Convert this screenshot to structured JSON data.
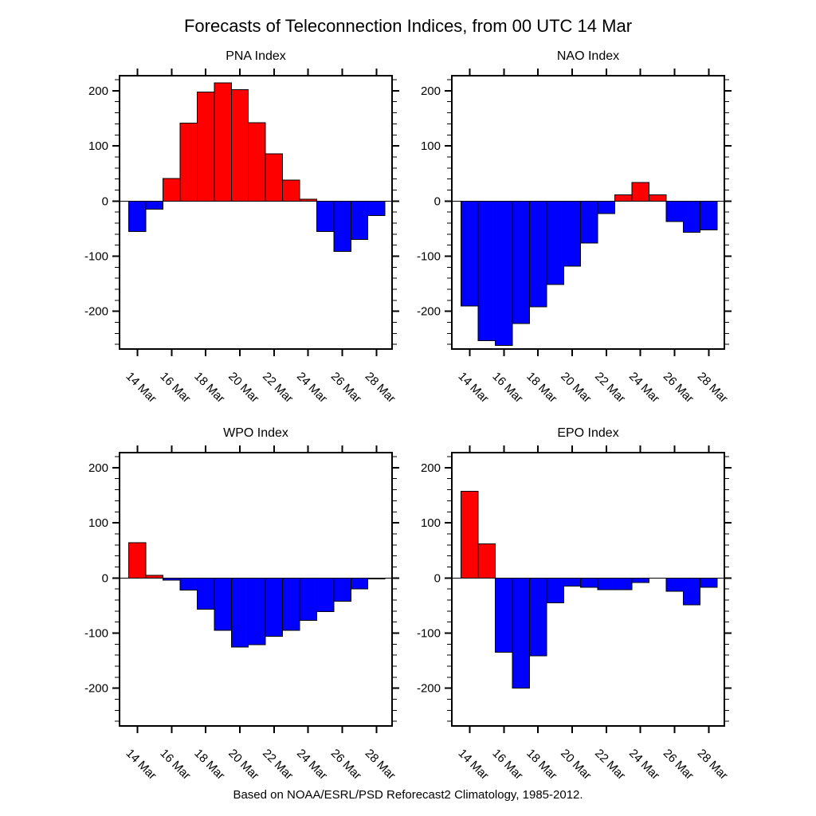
{
  "page": {
    "title": "Forecasts of Teleconnection Indices, from 00 UTC 14 Mar",
    "caption": "Based on NOAA/ESRL/PSD Reforecast2 Climatology, 1985-2012."
  },
  "colors": {
    "positive_bar": "#ff0000",
    "negative_bar": "#0000ff",
    "axis": "#000000",
    "background": "#ffffff"
  },
  "chart_data": [
    {
      "type": "bar",
      "title": "PNA Index",
      "categories": [
        "14 Mar",
        "15 Mar",
        "16 Mar",
        "17 Mar",
        "18 Mar",
        "19 Mar",
        "20 Mar",
        "21 Mar",
        "22 Mar",
        "23 Mar",
        "24 Mar",
        "25 Mar",
        "26 Mar",
        "27 Mar",
        "28 Mar"
      ],
      "values": [
        -55,
        -15,
        41,
        141,
        198,
        214,
        202,
        142,
        86,
        38,
        3,
        -55,
        -91,
        -70,
        -26
      ],
      "xlabel": "",
      "ylabel": "",
      "ylim": [
        -270,
        227
      ],
      "y_major_ticks": [
        200,
        100,
        0,
        -100,
        -200
      ],
      "y_minor_interval": 20,
      "x_tick_labels": [
        "14 Mar",
        "16 Mar",
        "18 Mar",
        "20 Mar",
        "22 Mar",
        "24 Mar",
        "26 Mar",
        "28 Mar"
      ],
      "grid": "off",
      "legend": "none"
    },
    {
      "type": "bar",
      "title": "NAO Index",
      "categories": [
        "14 Mar",
        "15 Mar",
        "16 Mar",
        "17 Mar",
        "18 Mar",
        "19 Mar",
        "20 Mar",
        "21 Mar",
        "22 Mar",
        "23 Mar",
        "24 Mar",
        "25 Mar",
        "26 Mar",
        "27 Mar",
        "28 Mar"
      ],
      "values": [
        -190,
        -253,
        -262,
        -222,
        -192,
        -151,
        -118,
        -76,
        -23,
        11,
        34,
        11,
        -37,
        -57,
        -52
      ],
      "xlabel": "",
      "ylabel": "",
      "ylim": [
        -270,
        227
      ],
      "y_major_ticks": [
        200,
        100,
        0,
        -100,
        -200
      ],
      "y_minor_interval": 20,
      "x_tick_labels": [
        "14 Mar",
        "16 Mar",
        "18 Mar",
        "20 Mar",
        "22 Mar",
        "24 Mar",
        "26 Mar",
        "28 Mar"
      ],
      "grid": "off",
      "legend": "none"
    },
    {
      "type": "bar",
      "title": "WPO Index",
      "categories": [
        "14 Mar",
        "15 Mar",
        "16 Mar",
        "17 Mar",
        "18 Mar",
        "19 Mar",
        "20 Mar",
        "21 Mar",
        "22 Mar",
        "23 Mar",
        "24 Mar",
        "25 Mar",
        "26 Mar",
        "27 Mar",
        "28 Mar"
      ],
      "values": [
        64,
        5,
        -4,
        -22,
        -57,
        -95,
        -125,
        -121,
        -106,
        -95,
        -77,
        -61,
        -42,
        -20,
        -2
      ],
      "xlabel": "",
      "ylabel": "",
      "ylim": [
        -270,
        227
      ],
      "y_major_ticks": [
        200,
        100,
        0,
        -100,
        -200
      ],
      "y_minor_interval": 20,
      "x_tick_labels": [
        "14 Mar",
        "16 Mar",
        "18 Mar",
        "20 Mar",
        "22 Mar",
        "24 Mar",
        "26 Mar",
        "28 Mar"
      ],
      "grid": "off",
      "legend": "none"
    },
    {
      "type": "bar",
      "title": "EPO Index",
      "categories": [
        "14 Mar",
        "15 Mar",
        "16 Mar",
        "17 Mar",
        "18 Mar",
        "19 Mar",
        "20 Mar",
        "21 Mar",
        "22 Mar",
        "23 Mar",
        "24 Mar",
        "25 Mar",
        "26 Mar",
        "27 Mar",
        "28 Mar"
      ],
      "values": [
        157,
        62,
        -135,
        -200,
        -141,
        -45,
        -15,
        -17,
        -21,
        -21,
        -8,
        0,
        -24,
        -49,
        -17
      ],
      "xlabel": "",
      "ylabel": "",
      "ylim": [
        -270,
        227
      ],
      "y_major_ticks": [
        200,
        100,
        0,
        -100,
        -200
      ],
      "y_minor_interval": 20,
      "x_tick_labels": [
        "14 Mar",
        "16 Mar",
        "18 Mar",
        "20 Mar",
        "22 Mar",
        "24 Mar",
        "26 Mar",
        "28 Mar"
      ],
      "grid": "off",
      "legend": "none"
    }
  ]
}
